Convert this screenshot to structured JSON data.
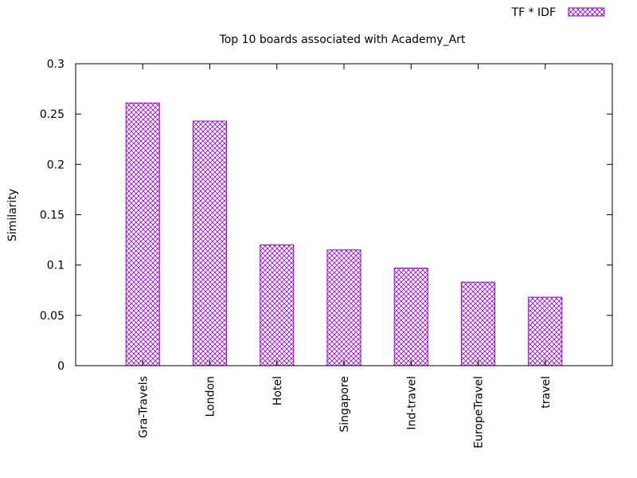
{
  "chart_data": {
    "type": "bar",
    "title": "Top 10 boards associated with Academy_Art",
    "xlabel": "",
    "ylabel": "Similarity",
    "ylim": [
      0,
      0.3
    ],
    "yticks": [
      "0",
      "0.05",
      "0.1",
      "0.15",
      "0.2",
      "0.25",
      "0.3"
    ],
    "categories": [
      "Gra-Travels",
      "London",
      "Hotel",
      "Singapore",
      "Ind-travel",
      "EuropeTravel",
      "travel"
    ],
    "series": [
      {
        "name": "TF * IDF",
        "values": [
          0.261,
          0.243,
          0.12,
          0.115,
          0.097,
          0.083,
          0.068
        ]
      }
    ],
    "legend_position": "top-right",
    "grid": false,
    "bar_color": "#9400d3",
    "bar_pattern": "crosshatch"
  }
}
